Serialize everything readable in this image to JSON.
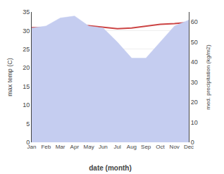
{
  "chart_data": {
    "type": "line",
    "xlabel": "date (month)",
    "ylabel": "max temp (C)",
    "y2label": "med. precipitation (kg/m2)",
    "categories": [
      "Jan",
      "Feb",
      "Mar",
      "Apr",
      "May",
      "Jun",
      "Jul",
      "Aug",
      "Sep",
      "Oct",
      "Nov",
      "Dec"
    ],
    "series": [
      {
        "type": "area",
        "axis": "y2",
        "color": "#c5cdf0",
        "values": [
          57,
          58,
          62,
          63,
          58,
          57,
          50,
          42,
          42,
          50,
          58,
          61
        ]
      },
      {
        "type": "line",
        "color": "#cc4444",
        "values": [
          30.8,
          30.8,
          31.2,
          31.6,
          31.3,
          30.9,
          30.5,
          30.7,
          31.2,
          31.7,
          31.9,
          32.2
        ]
      }
    ],
    "ylim": [
      0,
      35
    ],
    "yticks": [
      0,
      5,
      10,
      15,
      20,
      25,
      30,
      35
    ],
    "y2lim": [
      0,
      65
    ],
    "y2ticks": [
      0,
      10,
      20,
      30,
      40,
      50,
      60
    ],
    "grid": true
  }
}
